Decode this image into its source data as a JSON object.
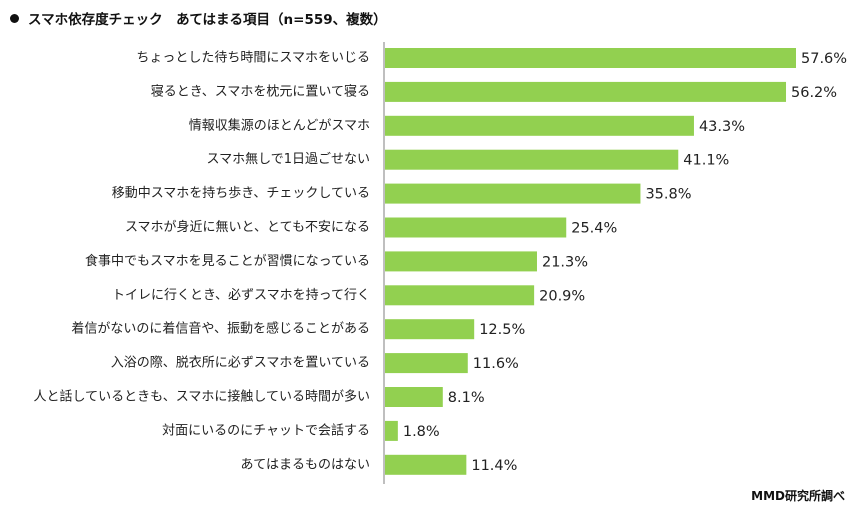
{
  "title": "スマホ依存度チェック　あてはまる項目（n=559、複数）",
  "credit": "MMD研究所調べ",
  "colors": {
    "bar": "#92d050",
    "axis": "#7f7f7f"
  },
  "chart_data": {
    "type": "bar",
    "orientation": "horizontal",
    "title": "スマホ依存度チェック　あてはまる項目（n=559、複数）",
    "categories": [
      "ちょっとした待ち時間にスマホをいじる",
      "寝るとき、スマホを枕元に置いて寝る",
      "情報収集源のほとんどがスマホ",
      "スマホ無しで1日過ごせない",
      "移動中スマホを持ち歩き、チェックしている",
      "スマホが身近に無いと、とても不安になる",
      "食事中でもスマホを見ることが習慣になっている",
      "トイレに行くとき、必ずスマホを持って行く",
      "着信がないのに着信音や、振動を感じることがある",
      "入浴の際、脱衣所に必ずスマホを置いている",
      "人と話しているときも、スマホに接触している時間が多い",
      "対面にいるのにチャットで会話する",
      "あてはまるものはない"
    ],
    "values": [
      57.6,
      56.2,
      43.3,
      41.1,
      35.8,
      25.4,
      21.3,
      20.9,
      12.5,
      11.6,
      8.1,
      1.8,
      11.4
    ],
    "value_labels": [
      "57.6%",
      "56.2%",
      "43.3%",
      "41.1%",
      "35.8%",
      "25.4%",
      "21.3%",
      "20.9%",
      "12.5%",
      "11.6%",
      "8.1%",
      "1.8%",
      "11.4%"
    ],
    "unit": "%",
    "xlim": [
      0,
      60
    ],
    "grid": false,
    "legend": "none"
  }
}
